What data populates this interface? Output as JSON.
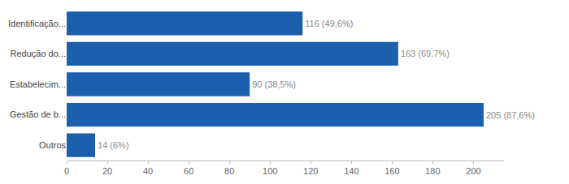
{
  "chart_data": {
    "type": "bar",
    "orientation": "horizontal",
    "categories": [
      "Outros",
      "Gestão de b...",
      "Estabelecim...",
      "Redução do...",
      "Identificação..."
    ],
    "values": [
      14,
      205,
      90,
      163,
      116
    ],
    "value_labels": [
      "14 (6%)",
      "205 (87,6%)",
      "90 (38,5%)",
      "163 (69,7%)",
      "116 (49,6%)"
    ],
    "data_labels": true,
    "color": "#1b5fad",
    "xlim": [
      0,
      215
    ],
    "xticks": [
      0,
      20,
      40,
      60,
      80,
      100,
      120,
      140,
      160,
      180,
      200
    ],
    "grid": false
  }
}
